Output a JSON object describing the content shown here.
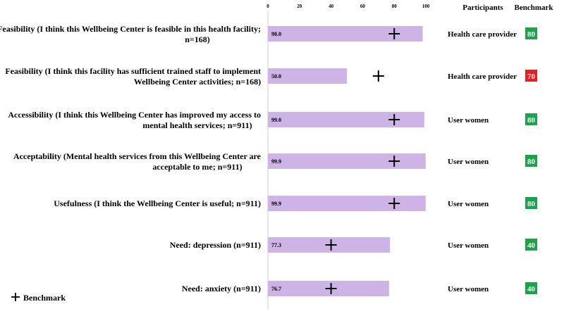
{
  "chart_data": {
    "type": "bar",
    "orientation": "horizontal",
    "categories": [
      [
        "Feasibility (I think this Wellbeing Center is feasible in this health facility;",
        "n=168)"
      ],
      [
        "Feasibility (I think this facility has sufficient trained staff to implement",
        "Wellbeing Center activities; n=168)"
      ],
      [
        "Accessibility (I think this Wellbeing Center has improved my access to",
        "mental health services; n=911)"
      ],
      [
        "Acceptability (Mental health services from this Wellbeing Center are",
        "acceptable to me; n=911)"
      ],
      [
        "Usefulness (I think the Wellbeing Center is useful; n=911)"
      ],
      [
        "Need: depression (n=911)"
      ],
      [
        "Need: anxiety (n=911)"
      ]
    ],
    "values": [
      98.0,
      50.0,
      99.0,
      99.9,
      99.9,
      77.3,
      76.7
    ],
    "value_labels": [
      "98.0",
      "50.0",
      "99.0",
      "99.9",
      "99.9",
      "77.3",
      "76.7"
    ],
    "benchmarks": [
      80,
      70,
      80,
      80,
      80,
      40,
      40
    ],
    "benchmark_labels": [
      "80",
      "70",
      "80",
      "80",
      "80",
      "40",
      "40"
    ],
    "benchmark_colors": [
      "#1aa34a",
      "#ee1c1c",
      "#1aa34a",
      "#1aa34a",
      "#1aa34a",
      "#1aa34a",
      "#1aa34a"
    ],
    "participants": [
      "Health care provider",
      "Health care provider",
      "User women",
      "User women",
      "User women",
      "User women",
      "User women"
    ],
    "xticks": [
      "0",
      "20",
      "40",
      "60",
      "80",
      "100"
    ],
    "xlim": [
      0,
      100
    ],
    "grid": false,
    "bar_color": "#cdb3e6",
    "columns": {
      "participants": "Participants",
      "benchmark": "Benchmark"
    },
    "legend": {
      "label": "Benchmark",
      "position": "bottom-left"
    }
  }
}
